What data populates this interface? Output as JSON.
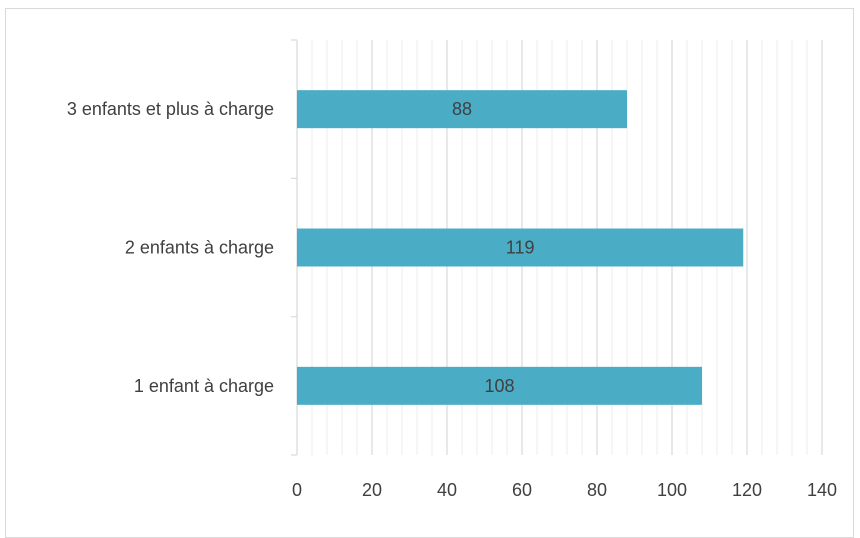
{
  "chart_data": {
    "type": "bar",
    "orientation": "horizontal",
    "categories": [
      "3 enfants et plus à charge",
      "2 enfants à charge",
      "1 enfant à charge"
    ],
    "values": [
      88,
      119,
      108
    ],
    "data_labels": [
      "88",
      "119",
      "108"
    ],
    "xlim": [
      0,
      140
    ],
    "x_ticks": [
      "0",
      "20",
      "40",
      "60",
      "80",
      "100",
      "120",
      "140"
    ],
    "grid": true,
    "legend": "none",
    "colors": {
      "bar": "#4bacc6",
      "major_grid": "#d9d9d9",
      "minor_grid": "#ececec",
      "axis": "#d9d9d9",
      "text": "#404040"
    }
  }
}
